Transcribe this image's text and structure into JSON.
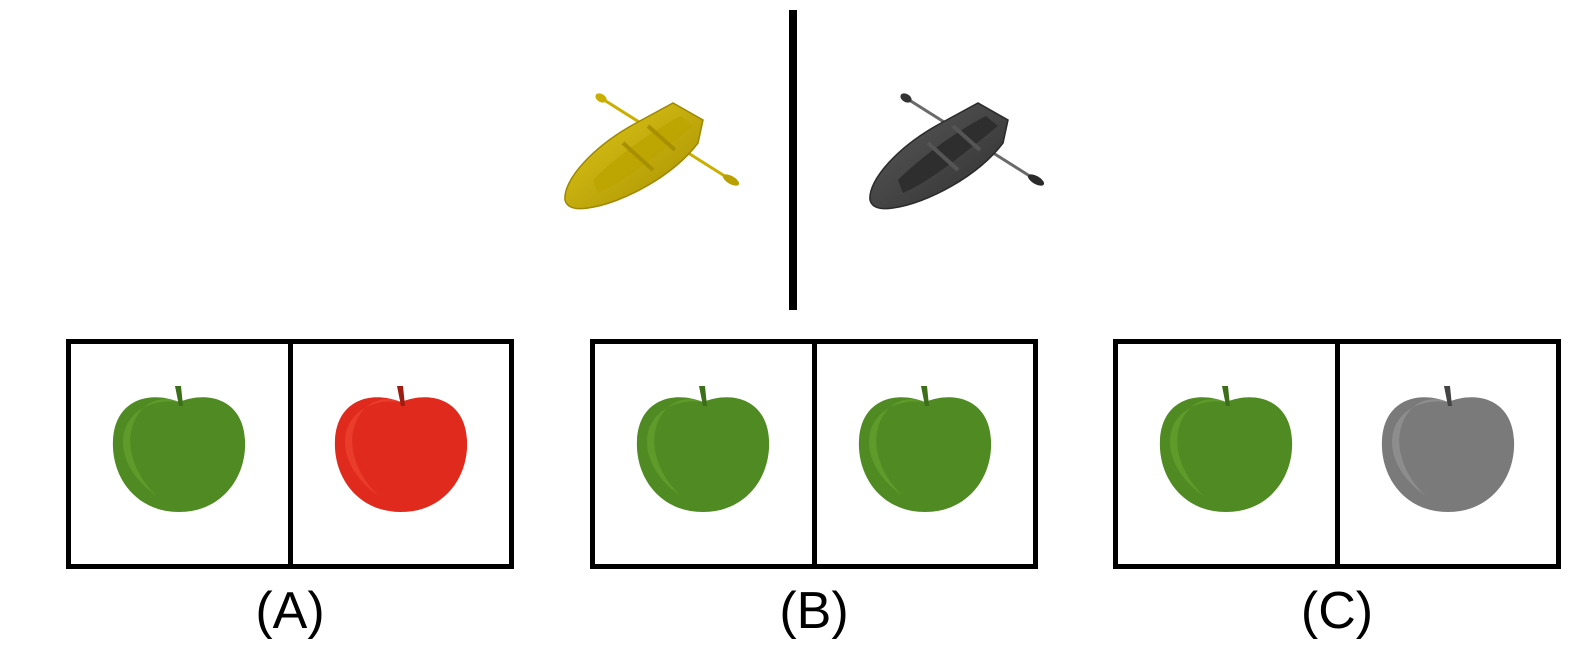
{
  "prompt": {
    "left_boat": {
      "icon": "yellow-rowboat-icon",
      "color": "#c9b000"
    },
    "right_boat": {
      "icon": "gray-rowboat-icon",
      "color": "#4a4a4a"
    }
  },
  "options": [
    {
      "label": "(A)",
      "left": {
        "icon": "green-apple-icon",
        "color": "#4f8a22"
      },
      "right": {
        "icon": "red-apple-icon",
        "color": "#e02a1e"
      }
    },
    {
      "label": "(B)",
      "left": {
        "icon": "green-apple-icon",
        "color": "#4f8a22"
      },
      "right": {
        "icon": "green-apple-icon",
        "color": "#4f8a22"
      }
    },
    {
      "label": "(C)",
      "left": {
        "icon": "green-apple-icon",
        "color": "#4f8a22"
      },
      "right": {
        "icon": "gray-apple-icon",
        "color": "#7a7a7a"
      }
    }
  ]
}
